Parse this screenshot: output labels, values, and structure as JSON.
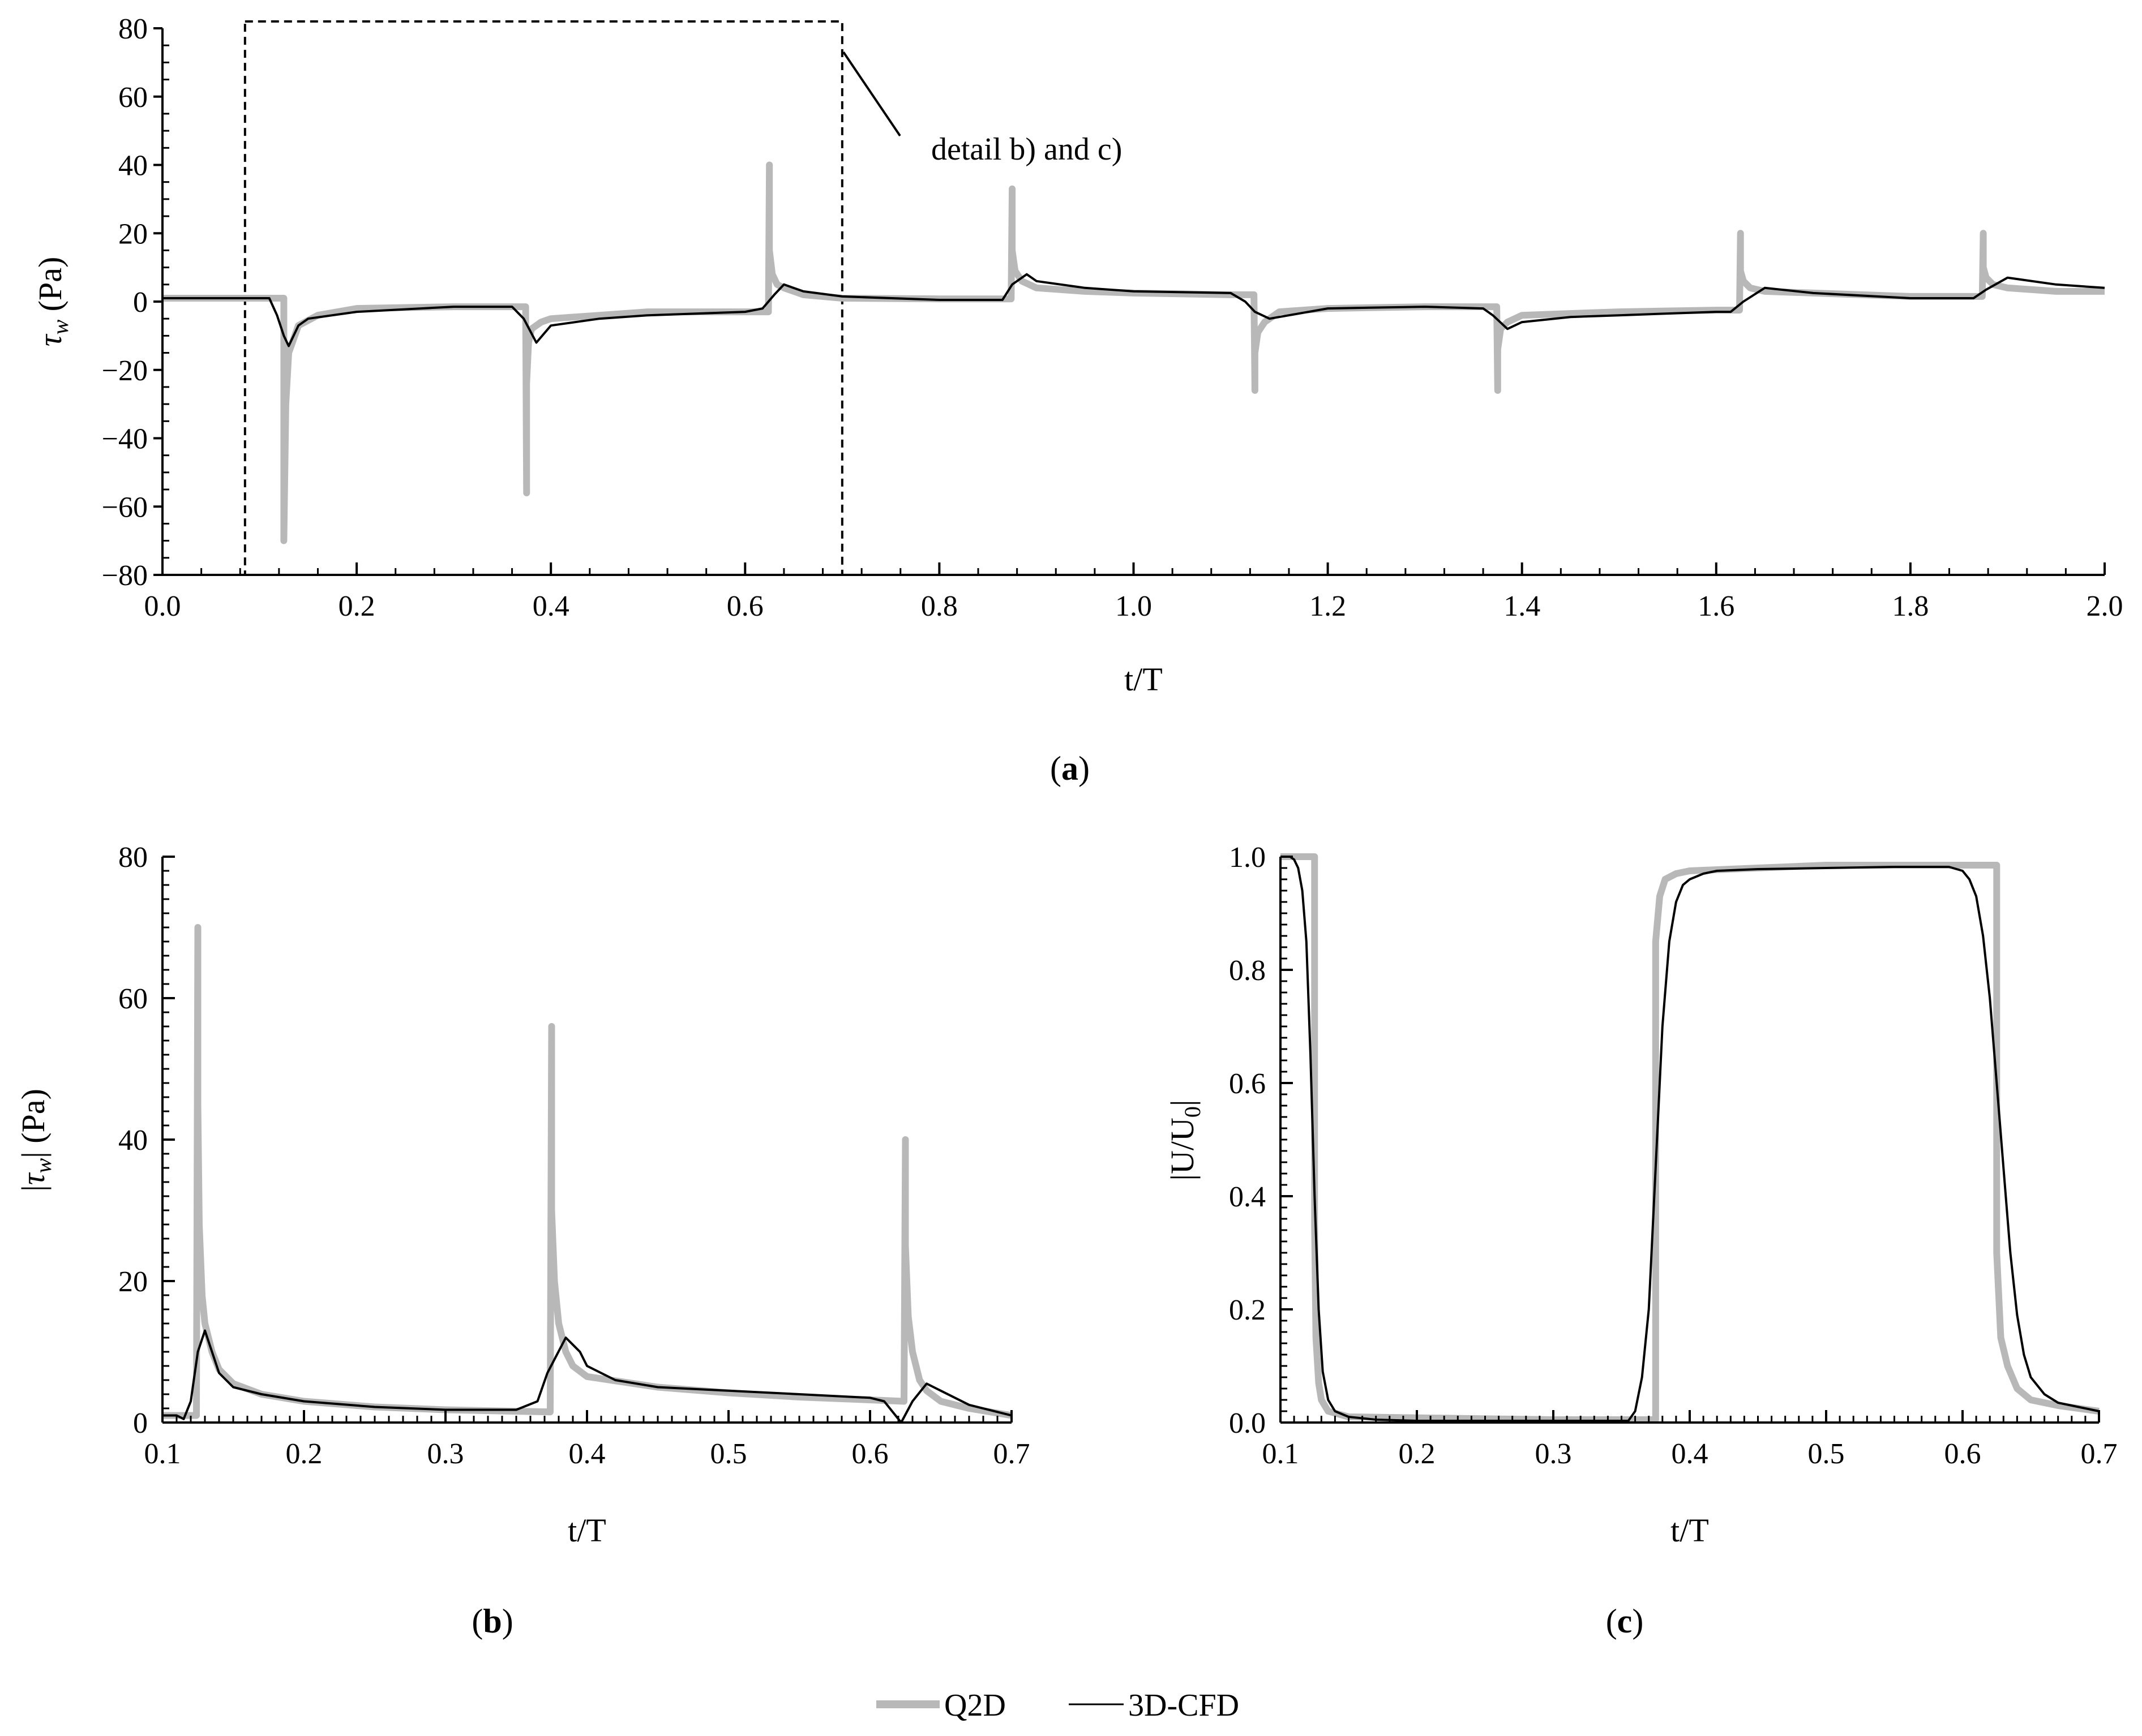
{
  "figure": {
    "annotation": "detail b) and c)",
    "legend": [
      {
        "name": "Q2D",
        "color": "#b8b8b8"
      },
      {
        "name": "3D-CFD",
        "color": "#000000"
      }
    ]
  },
  "chart_data": [
    {
      "id": "a",
      "panel_label_prefix": "(",
      "panel_label": "a",
      "panel_label_suffix": ")",
      "type": "line",
      "xlabel": "t/T",
      "ylabel": "τw (Pa)",
      "xlim": [
        0.0,
        2.0
      ],
      "ylim": [
        -80,
        80
      ],
      "xticks": [
        "0.0",
        "0.2",
        "0.4",
        "0.6",
        "0.8",
        "1.0",
        "1.2",
        "1.4",
        "1.6",
        "1.8",
        "2.0"
      ],
      "yticks": [
        "−80",
        "−60",
        "−40",
        "−20",
        "0",
        "20",
        "40",
        "60",
        "80"
      ],
      "detail_box": {
        "x": [
          0.085,
          0.7
        ],
        "y": [
          -80,
          82
        ]
      },
      "series": [
        {
          "name": "Q2D",
          "color": "#b8b8b8",
          "x": [
            0,
            0.125,
            0.125,
            0.127,
            0.13,
            0.14,
            0.16,
            0.2,
            0.3,
            0.374,
            0.375,
            0.375,
            0.377,
            0.38,
            0.39,
            0.4,
            0.45,
            0.5,
            0.6,
            0.624,
            0.625,
            0.625,
            0.628,
            0.633,
            0.64,
            0.66,
            0.7,
            0.8,
            0.874,
            0.875,
            0.875,
            0.878,
            0.885,
            0.9,
            0.95,
            1.0,
            1.1,
            1.124,
            1.125,
            1.125,
            1.128,
            1.135,
            1.15,
            1.2,
            1.3,
            1.374,
            1.375,
            1.375,
            1.378,
            1.385,
            1.4,
            1.45,
            1.5,
            1.6,
            1.624,
            1.625,
            1.625,
            1.628,
            1.635,
            1.65,
            1.7,
            1.8,
            1.874,
            1.875,
            1.875,
            1.878,
            1.885,
            1.9,
            1.95,
            2.0
          ],
          "y": [
            1,
            1,
            -70,
            -30,
            -15,
            -7,
            -4,
            -2,
            -1.5,
            -1.5,
            -56,
            -24,
            -12,
            -8,
            -6,
            -5,
            -4,
            -3,
            -3,
            -3,
            40,
            15,
            8,
            5,
            4,
            2,
            1,
            0.8,
            0.8,
            33,
            15,
            9,
            6,
            4,
            3,
            2.5,
            2,
            2,
            -26,
            -15,
            -9,
            -6,
            -3,
            -2,
            -1.5,
            -1.5,
            -26,
            -14,
            -8,
            -6,
            -4,
            -3.5,
            -3,
            -2.5,
            -2.5,
            20,
            9,
            6,
            4,
            3,
            2.5,
            1.5,
            1.5,
            20,
            10,
            7,
            5,
            4,
            3,
            3
          ]
        },
        {
          "name": "3D-CFD",
          "color": "#000000",
          "x": [
            0,
            0.11,
            0.118,
            0.125,
            0.13,
            0.14,
            0.15,
            0.2,
            0.3,
            0.36,
            0.372,
            0.385,
            0.4,
            0.45,
            0.5,
            0.6,
            0.618,
            0.63,
            0.64,
            0.66,
            0.7,
            0.8,
            0.865,
            0.875,
            0.89,
            0.9,
            0.95,
            1.0,
            1.1,
            1.115,
            1.125,
            1.14,
            1.16,
            1.2,
            1.3,
            1.36,
            1.37,
            1.385,
            1.4,
            1.45,
            1.5,
            1.6,
            1.615,
            1.628,
            1.65,
            1.7,
            1.8,
            1.865,
            1.878,
            1.9,
            1.95,
            2.0
          ],
          "y": [
            1,
            1,
            -4,
            -10,
            -13,
            -7,
            -5,
            -3,
            -1.5,
            -1.5,
            -5,
            -12,
            -7,
            -5,
            -4,
            -3,
            -2,
            2,
            5,
            3,
            1.5,
            0.5,
            0.5,
            5,
            8,
            6,
            4,
            3,
            2.5,
            0,
            -3,
            -5,
            -4,
            -2,
            -1.5,
            -2,
            -4,
            -8,
            -6,
            -4.5,
            -4,
            -3,
            -3,
            0,
            4,
            2.5,
            1,
            1,
            3.5,
            7,
            5,
            4
          ]
        }
      ]
    },
    {
      "id": "b",
      "panel_label_prefix": "(",
      "panel_label": "b",
      "panel_label_suffix": ")",
      "type": "line",
      "xlabel": "t/T",
      "ylabel": "|τw| (Pa)",
      "xlim": [
        0.1,
        0.7
      ],
      "ylim": [
        0,
        80
      ],
      "xticks": [
        "0.1",
        "0.2",
        "0.3",
        "0.4",
        "0.5",
        "0.6",
        "0.7"
      ],
      "yticks": [
        "0",
        "20",
        "40",
        "60",
        "80"
      ],
      "series": [
        {
          "name": "Q2D",
          "color": "#b8b8b8",
          "x": [
            0.1,
            0.124,
            0.125,
            0.125,
            0.126,
            0.128,
            0.13,
            0.135,
            0.14,
            0.15,
            0.17,
            0.2,
            0.25,
            0.3,
            0.374,
            0.375,
            0.375,
            0.377,
            0.38,
            0.385,
            0.39,
            0.4,
            0.45,
            0.5,
            0.55,
            0.6,
            0.624,
            0.625,
            0.625,
            0.627,
            0.63,
            0.635,
            0.64,
            0.65,
            0.67,
            0.7
          ],
          "y": [
            1,
            1,
            70,
            45,
            28,
            18,
            14,
            10,
            7.5,
            5.5,
            4,
            3,
            2.2,
            1.8,
            1.5,
            56,
            30,
            20,
            14,
            10,
            8,
            6.5,
            5,
            4.2,
            3.6,
            3.2,
            3,
            40,
            25,
            15,
            10,
            6,
            4.5,
            3,
            2,
            1
          ]
        },
        {
          "name": "3D-CFD",
          "color": "#000000",
          "x": [
            0.1,
            0.11,
            0.115,
            0.12,
            0.125,
            0.13,
            0.135,
            0.14,
            0.15,
            0.17,
            0.2,
            0.25,
            0.3,
            0.35,
            0.365,
            0.372,
            0.385,
            0.395,
            0.4,
            0.42,
            0.45,
            0.5,
            0.55,
            0.6,
            0.61,
            0.618,
            0.622,
            0.63,
            0.64,
            0.65,
            0.67,
            0.7
          ],
          "y": [
            1,
            1,
            0.5,
            3,
            10,
            13,
            10,
            7,
            5,
            4,
            3,
            2.2,
            1.8,
            1.8,
            3,
            7,
            12,
            10,
            8,
            6,
            5,
            4.5,
            4,
            3.5,
            3,
            1,
            0,
            3,
            5.5,
            4.5,
            2.5,
            1
          ]
        }
      ]
    },
    {
      "id": "c",
      "panel_label_prefix": "(",
      "panel_label": "c",
      "panel_label_suffix": ")",
      "type": "line",
      "xlabel": "t/T",
      "ylabel": "|U/U0|",
      "xlim": [
        0.1,
        0.7
      ],
      "ylim": [
        0.0,
        1.0
      ],
      "xticks": [
        "0.1",
        "0.2",
        "0.3",
        "0.4",
        "0.5",
        "0.6",
        "0.7"
      ],
      "yticks": [
        "0.0",
        "0.2",
        "0.4",
        "0.6",
        "0.8",
        "1.0"
      ],
      "series": [
        {
          "name": "Q2D",
          "color": "#b8b8b8",
          "x": [
            0.1,
            0.124,
            0.125,
            0.125,
            0.126,
            0.128,
            0.13,
            0.135,
            0.15,
            0.3,
            0.374,
            0.375,
            0.375,
            0.378,
            0.382,
            0.39,
            0.4,
            0.45,
            0.5,
            0.6,
            0.624,
            0.625,
            0.625,
            0.628,
            0.633,
            0.64,
            0.65,
            0.67,
            0.7
          ],
          "y": [
            1.0,
            1.0,
            1.0,
            0.35,
            0.15,
            0.07,
            0.04,
            0.02,
            0.01,
            0.005,
            0.005,
            0.005,
            0.85,
            0.93,
            0.96,
            0.97,
            0.975,
            0.98,
            0.985,
            0.985,
            0.985,
            0.985,
            0.3,
            0.15,
            0.1,
            0.06,
            0.04,
            0.03,
            0.02
          ]
        },
        {
          "name": "3D-CFD",
          "color": "#000000",
          "x": [
            0.1,
            0.107,
            0.11,
            0.113,
            0.116,
            0.119,
            0.122,
            0.125,
            0.128,
            0.131,
            0.135,
            0.14,
            0.15,
            0.17,
            0.2,
            0.3,
            0.355,
            0.36,
            0.365,
            0.37,
            0.375,
            0.38,
            0.385,
            0.39,
            0.395,
            0.4,
            0.41,
            0.42,
            0.45,
            0.5,
            0.55,
            0.59,
            0.6,
            0.605,
            0.61,
            0.615,
            0.62,
            0.625,
            0.63,
            0.635,
            0.64,
            0.645,
            0.65,
            0.66,
            0.67,
            0.7
          ],
          "y": [
            1.0,
            1.0,
            0.995,
            0.98,
            0.94,
            0.85,
            0.65,
            0.4,
            0.2,
            0.09,
            0.04,
            0.02,
            0.01,
            0.005,
            0.003,
            0.003,
            0.003,
            0.02,
            0.08,
            0.2,
            0.45,
            0.7,
            0.85,
            0.92,
            0.95,
            0.96,
            0.97,
            0.975,
            0.978,
            0.98,
            0.982,
            0.982,
            0.975,
            0.96,
            0.93,
            0.86,
            0.75,
            0.6,
            0.45,
            0.3,
            0.19,
            0.12,
            0.08,
            0.05,
            0.035,
            0.02
          ]
        }
      ]
    }
  ]
}
